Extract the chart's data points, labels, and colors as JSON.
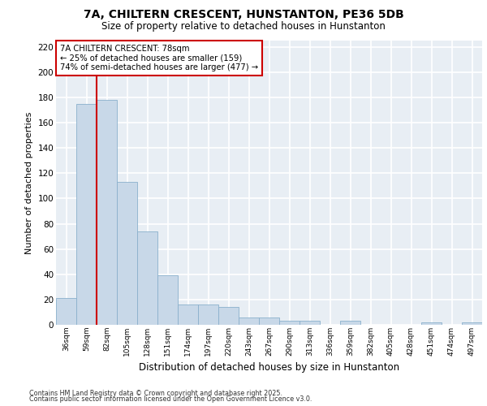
{
  "title_line1": "7A, CHILTERN CRESCENT, HUNSTANTON, PE36 5DB",
  "title_line2": "Size of property relative to detached houses in Hunstanton",
  "xlabel": "Distribution of detached houses by size in Hunstanton",
  "ylabel": "Number of detached properties",
  "categories": [
    "36sqm",
    "59sqm",
    "82sqm",
    "105sqm",
    "128sqm",
    "151sqm",
    "174sqm",
    "197sqm",
    "220sqm",
    "243sqm",
    "267sqm",
    "290sqm",
    "313sqm",
    "336sqm",
    "359sqm",
    "382sqm",
    "405sqm",
    "428sqm",
    "451sqm",
    "474sqm",
    "497sqm"
  ],
  "values": [
    21,
    175,
    178,
    113,
    74,
    39,
    16,
    16,
    14,
    6,
    6,
    3,
    3,
    0,
    3,
    0,
    0,
    0,
    2,
    0,
    2
  ],
  "bar_color": "#c8d8e8",
  "bar_edge_color": "#8ab0cc",
  "background_color": "#e8eef4",
  "grid_color": "#ffffff",
  "vline_x_index": 1.5,
  "vline_color": "#cc0000",
  "annotation_text": "7A CHILTERN CRESCENT: 78sqm\n← 25% of detached houses are smaller (159)\n74% of semi-detached houses are larger (477) →",
  "annotation_box_color": "#ffffff",
  "annotation_box_edge_color": "#cc0000",
  "ylim": [
    0,
    225
  ],
  "yticks": [
    0,
    20,
    40,
    60,
    80,
    100,
    120,
    140,
    160,
    180,
    200,
    220
  ],
  "footer_line1": "Contains HM Land Registry data © Crown copyright and database right 2025.",
  "footer_line2": "Contains public sector information licensed under the Open Government Licence v3.0.",
  "fig_bg": "#ffffff"
}
